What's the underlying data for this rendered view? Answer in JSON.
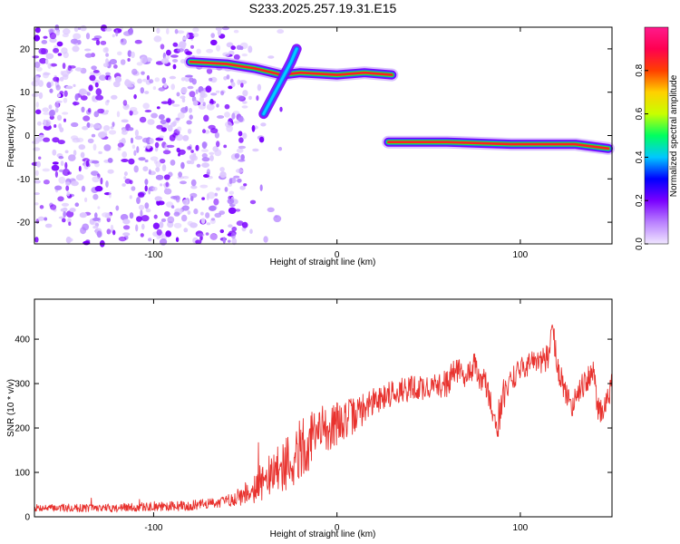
{
  "title": "S233.2025.257.19.31.E15",
  "colors": {
    "snr_line": "#e8322e",
    "blob": "#7a00ff",
    "ridge_hot": "#ff1f1f",
    "ridge_mid": "#20e840",
    "ridge_cool": "#2060ff"
  },
  "chart_data": [
    {
      "type": "heatmap",
      "name": "spectrogram",
      "xlabel": "Height of straight line (km)",
      "ylabel": "Frequency (Hz)",
      "xlim": [
        -165,
        150
      ],
      "ylim": [
        -25,
        25
      ],
      "xticks": [
        -100,
        0,
        100
      ],
      "xtick_labels": [
        "-100",
        "0",
        "100"
      ],
      "yticks": [
        -20,
        -10,
        0,
        10,
        20
      ],
      "ytick_labels": [
        "-20",
        "-10",
        "0",
        "10",
        "20"
      ],
      "noise_region": {
        "x": [
          -165,
          -55
        ],
        "freq": [
          -25,
          25
        ]
      },
      "features": [
        {
          "name": "ridge-high",
          "x": [
            -80,
            -60,
            -45,
            -30,
            -20,
            0,
            15,
            30
          ],
          "freq": [
            17,
            16.5,
            15.5,
            14,
            14.5,
            14,
            14.5,
            14
          ]
        },
        {
          "name": "branch-diagonal",
          "x": [
            -40,
            -35,
            -30,
            -25,
            -22
          ],
          "freq": [
            5,
            9,
            13,
            17,
            20
          ]
        },
        {
          "name": "ridge-low",
          "x": [
            28,
            60,
            95,
            100,
            130,
            148
          ],
          "freq": [
            -1.5,
            -1.5,
            -2,
            -2,
            -2,
            -3
          ]
        }
      ],
      "colorbar": {
        "label": "Normalized spectral amplitude",
        "range": [
          0.0,
          1.0
        ],
        "ticks": [
          0.0,
          0.2,
          0.4,
          0.6,
          0.8
        ],
        "tick_labels": [
          "0.0",
          "0.2",
          "0.4",
          "0.6",
          "0.8"
        ],
        "colors": [
          "#f0e6ff",
          "#b980ff",
          "#7a00ff",
          "#0000ff",
          "#00c8ff",
          "#00ff60",
          "#c8ff00",
          "#ffd000",
          "#ff4000",
          "#ff0050",
          "#ff1a8c"
        ]
      }
    },
    {
      "type": "line",
      "name": "snr",
      "xlabel": "Height of straight line (km)",
      "ylabel": "SNR (10 * v/v)",
      "xlim": [
        -165,
        150
      ],
      "ylim": [
        0,
        490
      ],
      "xticks": [
        -100,
        0,
        100
      ],
      "xtick_labels": [
        "-100",
        "0",
        "100"
      ],
      "yticks": [
        0,
        100,
        200,
        300,
        400
      ],
      "ytick_labels": [
        "0",
        "100",
        "200",
        "300",
        "400"
      ],
      "envelope": {
        "x": [
          -165,
          -120,
          -80,
          -60,
          -50,
          -40,
          -30,
          -20,
          -10,
          0,
          10,
          20,
          30,
          40,
          50,
          60,
          65,
          70,
          75,
          78,
          80,
          85,
          88,
          90,
          95,
          100,
          105,
          110,
          115,
          118,
          120,
          125,
          128,
          130,
          135,
          140,
          142,
          145,
          150
        ],
        "y": [
          20,
          20,
          25,
          35,
          55,
          80,
          110,
          150,
          190,
          210,
          230,
          260,
          280,
          290,
          290,
          300,
          330,
          320,
          340,
          300,
          320,
          240,
          200,
          260,
          310,
          330,
          350,
          340,
          360,
          420,
          340,
          280,
          240,
          280,
          300,
          330,
          250,
          230,
          300
        ],
        "noise_amplitude": {
          "x": [
            -165,
            -60,
            -40,
            -20,
            0,
            20,
            150
          ],
          "y": [
            8,
            12,
            45,
            70,
            50,
            30,
            28
          ]
        },
        "n_samples": 1200
      }
    }
  ]
}
